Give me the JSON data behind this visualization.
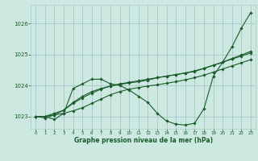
{
  "background_color": "#cce8e0",
  "grid_color": "#aacccc",
  "line_color": "#1a5c2a",
  "xlabel": "Graphe pression niveau de la mer (hPa)",
  "xlim": [
    -0.5,
    23.5
  ],
  "ylim": [
    1022.6,
    1026.6
  ],
  "yticks": [
    1023,
    1024,
    1025,
    1026
  ],
  "xticks": [
    0,
    1,
    2,
    3,
    4,
    5,
    6,
    7,
    8,
    9,
    10,
    11,
    12,
    13,
    14,
    15,
    16,
    17,
    18,
    19,
    20,
    21,
    22,
    23
  ],
  "series": [
    [
      1023.0,
      1023.0,
      1022.9,
      1023.1,
      1023.9,
      1024.05,
      1024.2,
      1024.2,
      1024.05,
      1024.0,
      1023.85,
      1023.65,
      1023.45,
      1023.1,
      1022.85,
      1022.75,
      1022.72,
      1022.78,
      1023.25,
      1024.3,
      1024.75,
      1025.25,
      1025.85,
      1026.35
    ],
    [
      1023.0,
      1023.0,
      1023.1,
      1023.2,
      1023.45,
      1023.65,
      1023.8,
      1023.9,
      1023.98,
      1024.05,
      1024.1,
      1024.15,
      1024.2,
      1024.25,
      1024.3,
      1024.35,
      1024.4,
      1024.45,
      1024.55,
      1024.65,
      1024.75,
      1024.87,
      1024.98,
      1025.1
    ],
    [
      1023.0,
      1022.95,
      1023.05,
      1023.2,
      1023.42,
      1023.6,
      1023.75,
      1023.88,
      1023.98,
      1024.03,
      1024.08,
      1024.12,
      1024.17,
      1024.25,
      1024.3,
      1024.35,
      1024.4,
      1024.47,
      1024.55,
      1024.65,
      1024.75,
      1024.85,
      1024.95,
      1025.05
    ],
    [
      1023.0,
      1023.0,
      1023.05,
      1023.1,
      1023.18,
      1023.28,
      1023.42,
      1023.56,
      1023.7,
      1023.8,
      1023.88,
      1023.93,
      1023.98,
      1024.02,
      1024.07,
      1024.12,
      1024.18,
      1024.25,
      1024.33,
      1024.43,
      1024.53,
      1024.63,
      1024.73,
      1024.83
    ]
  ]
}
